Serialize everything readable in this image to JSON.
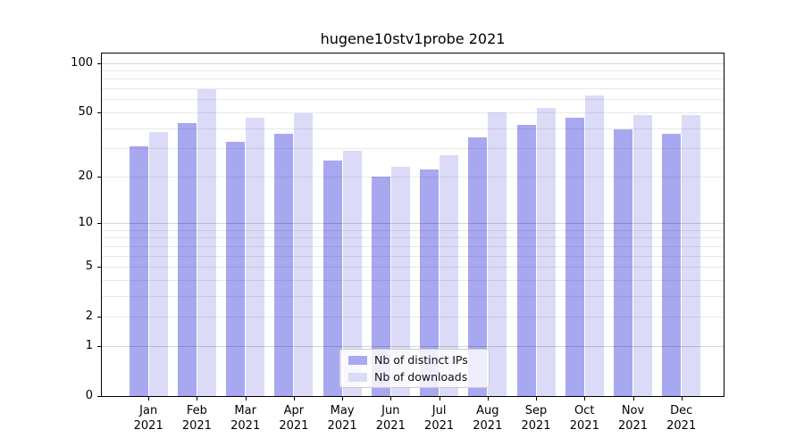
{
  "title": "hugene10stv1probe 2021",
  "chart_data": {
    "type": "bar",
    "title": "hugene10stv1probe 2021",
    "categories": [
      "Jan 2021",
      "Feb 2021",
      "Mar 2021",
      "Apr 2021",
      "May 2021",
      "Jun 2021",
      "Jul 2021",
      "Aug 2021",
      "Sep 2021",
      "Oct 2021",
      "Nov 2021",
      "Dec 2021"
    ],
    "months": [
      "Jan",
      "Feb",
      "Mar",
      "Apr",
      "May",
      "Jun",
      "Jul",
      "Aug",
      "Sep",
      "Oct",
      "Nov",
      "Dec"
    ],
    "year_label": "2021",
    "series": [
      {
        "name": "Nb of distinct IPs",
        "color": "#a8a8f0",
        "values": [
          31,
          43,
          33,
          37,
          25,
          20,
          22,
          35,
          42,
          46,
          39,
          37
        ]
      },
      {
        "name": "Nb of downloads",
        "color": "#dbdbf8",
        "values": [
          38,
          69,
          46,
          49,
          29,
          23,
          27,
          50,
          53,
          63,
          48,
          48
        ]
      }
    ],
    "xlabel": "",
    "ylabel": "",
    "yscale": "log1p",
    "ylim": [
      0,
      114
    ],
    "y_tick_values": [
      0,
      1,
      2,
      5,
      10,
      20,
      50,
      100
    ],
    "minor_grid_values": [
      2,
      3,
      4,
      5,
      6,
      7,
      8,
      9,
      20,
      30,
      40,
      50,
      60,
      70,
      80,
      90
    ],
    "major_grid_values": [
      1,
      10,
      100
    ],
    "grid": "horizontal, minor+major, drawn over bars",
    "legend_position": "lower center"
  }
}
